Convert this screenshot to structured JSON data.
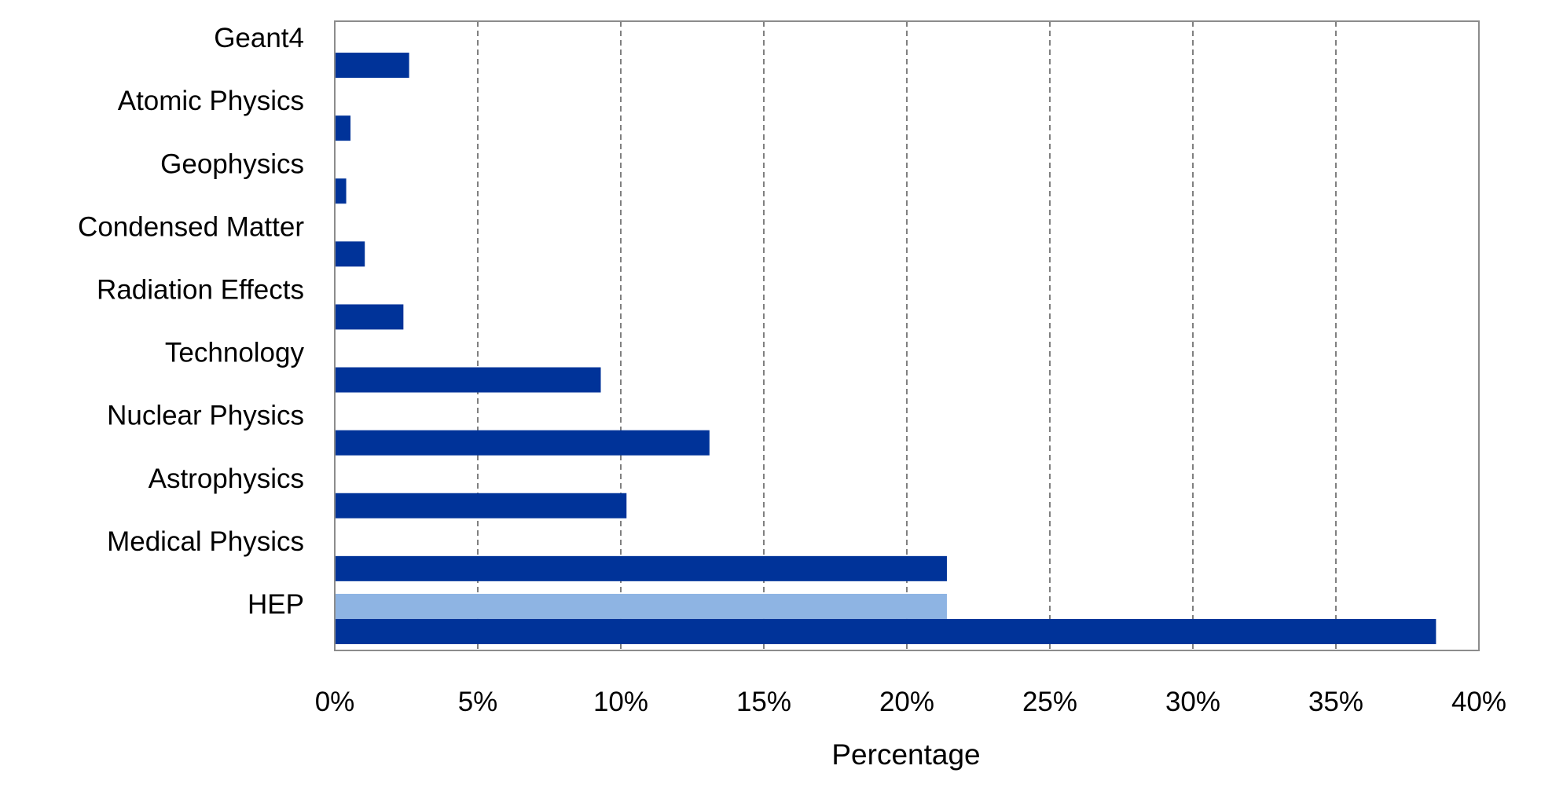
{
  "chart_data": {
    "type": "bar",
    "orientation": "horizontal",
    "categories": [
      "Geant4",
      "Atomic Physics",
      "Geophysics",
      "Condensed Matter",
      "Radiation Effects",
      "Technology",
      "Nuclear Physics",
      "Astrophysics",
      "Medical Physics",
      "HEP"
    ],
    "series": [
      {
        "values": [
          2.6,
          0.55,
          0.4,
          1.05,
          2.4,
          9.3,
          13.1,
          10.2,
          21.4,
          38.5
        ],
        "color": "#003399"
      },
      {
        "values": [
          null,
          null,
          null,
          null,
          null,
          null,
          null,
          null,
          null,
          21.4
        ],
        "color": "#8eb4e3"
      }
    ],
    "xlabel": "Percentage",
    "ylabel": "",
    "xlim": [
      0,
      40
    ],
    "xticks": [
      "0%",
      "5%",
      "10%",
      "15%",
      "20%",
      "25%",
      "30%",
      "35%",
      "40%"
    ],
    "grid": "vertical dashed",
    "legend": "none"
  }
}
